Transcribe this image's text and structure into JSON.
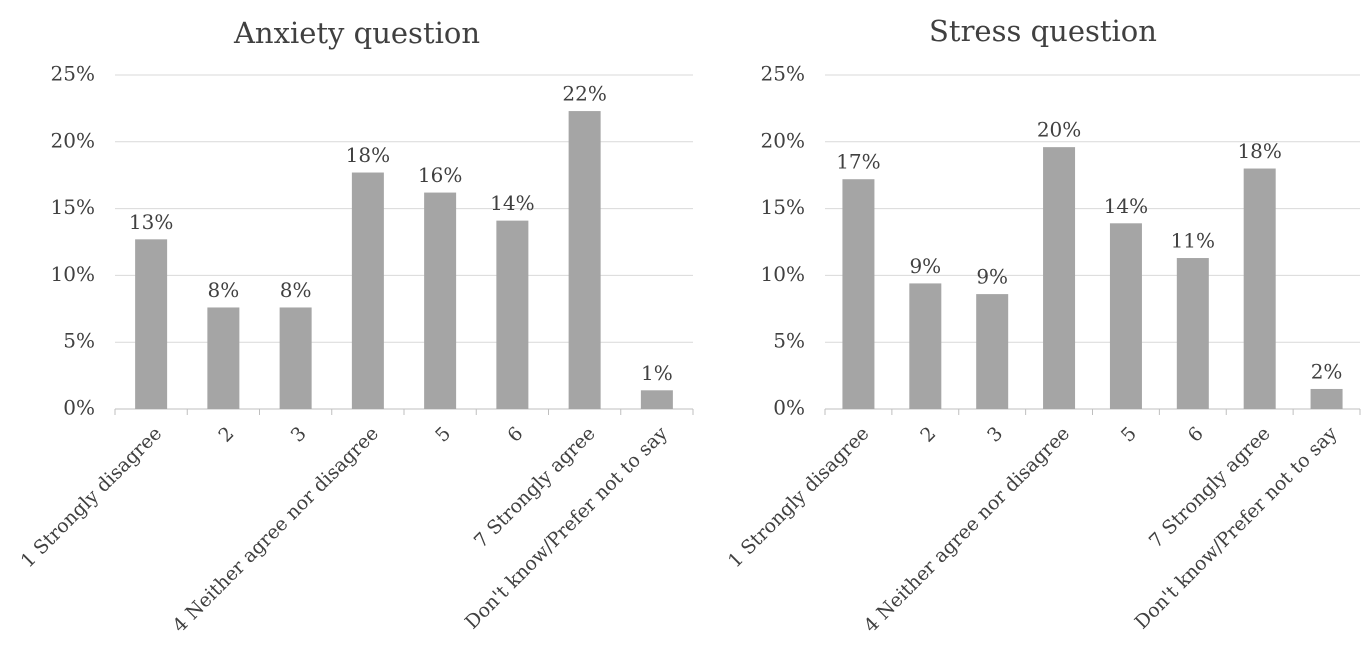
{
  "chart_data": [
    {
      "type": "bar",
      "title": "Anxiety question",
      "categories": [
        "1 Strongly disagree",
        "2",
        "3",
        "4 Neither agree nor disagree",
        "5",
        "6",
        "7 Strongly agree",
        "Don't know/Prefer not to say"
      ],
      "values": [
        12.7,
        7.6,
        7.6,
        17.7,
        16.2,
        14.1,
        22.3,
        1.4
      ],
      "data_labels": [
        "13%",
        "8%",
        "8%",
        "18%",
        "16%",
        "14%",
        "22%",
        "1%"
      ],
      "y_ticks": [
        "0%",
        "5%",
        "10%",
        "15%",
        "20%",
        "25%"
      ],
      "ylim": [
        0,
        25
      ],
      "grid": true,
      "legend": "none",
      "bar_color": "#a5a5a5"
    },
    {
      "type": "bar",
      "title": "Stress question",
      "categories": [
        "1 Strongly disagree",
        "2",
        "3",
        "4 Neither agree nor disagree",
        "5",
        "6",
        "7 Strongly agree",
        "Don't know/Prefer not to say"
      ],
      "values": [
        17.2,
        9.4,
        8.6,
        19.6,
        13.9,
        11.3,
        18.0,
        1.5
      ],
      "data_labels": [
        "17%",
        "9%",
        "9%",
        "20%",
        "14%",
        "11%",
        "18%",
        "2%"
      ],
      "y_ticks": [
        "0%",
        "5%",
        "10%",
        "15%",
        "20%",
        "25%"
      ],
      "ylim": [
        0,
        25
      ],
      "grid": true,
      "legend": "none",
      "bar_color": "#a5a5a5"
    }
  ]
}
